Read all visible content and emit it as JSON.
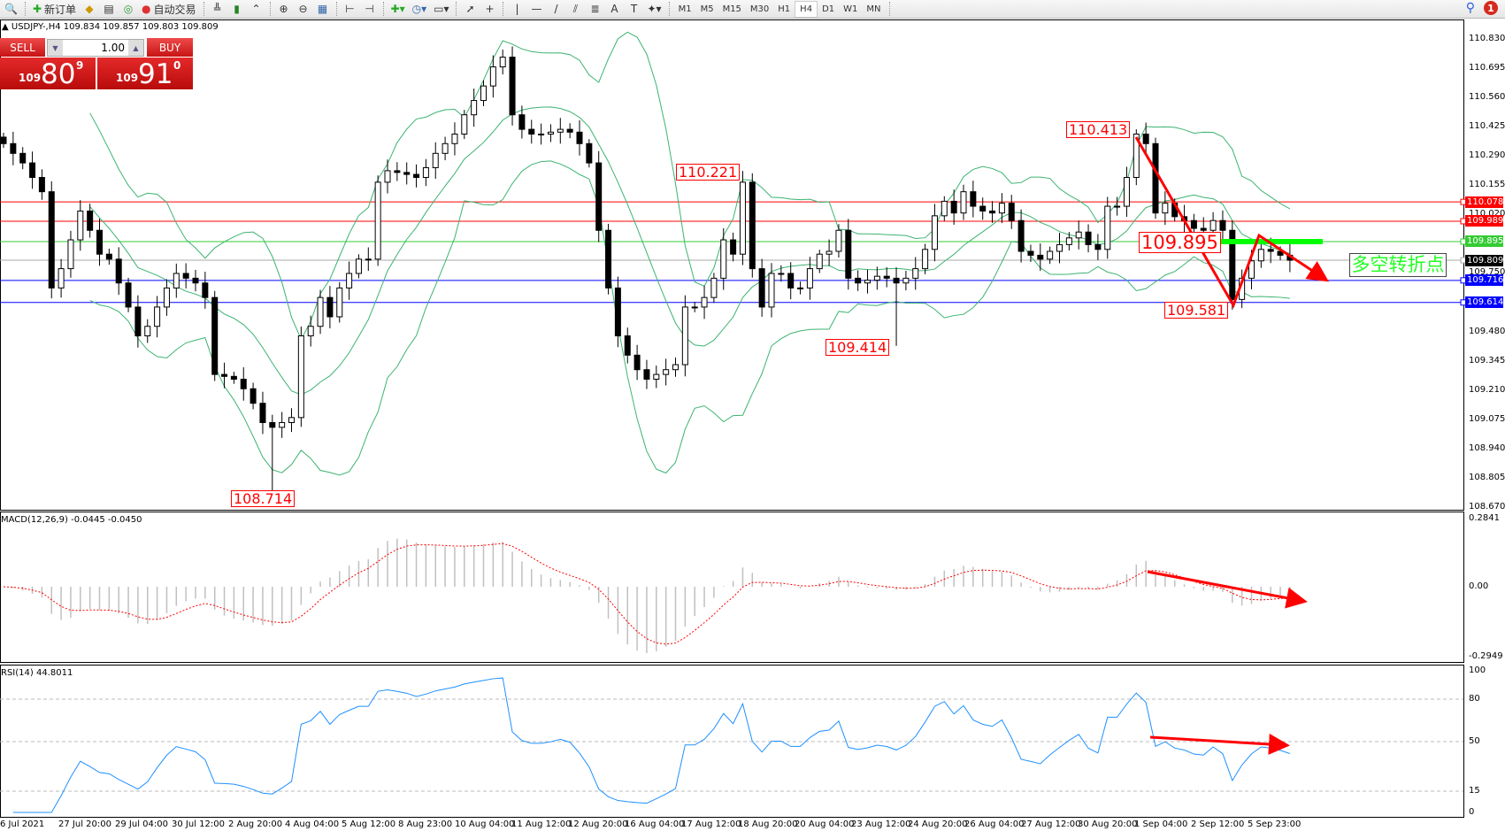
{
  "toolbar": {
    "new_order": "新订单",
    "auto_trading": "自动交易",
    "timeframes": [
      "M1",
      "M5",
      "M15",
      "M30",
      "H1",
      "H4",
      "D1",
      "W1",
      "MN"
    ],
    "active_timeframe": "H4",
    "notifications": "1"
  },
  "symbol_info": "USDJPY-,H4  109.834 109.857 109.803 109.809",
  "oneclick": {
    "sell": "SELL",
    "buy": "BUY",
    "lots": "1.00",
    "sell_prefix": "109",
    "sell_big": "80",
    "sell_pip": "9",
    "buy_prefix": "109",
    "buy_big": "91",
    "buy_pip": "0",
    "color": "#d41919"
  },
  "price_axis": [
    "110.830",
    "110.695",
    "110.560",
    "110.425",
    "110.290",
    "110.155",
    "110.020",
    "109.750",
    "109.480",
    "109.345",
    "109.210",
    "109.075",
    "108.940",
    "108.805",
    "108.670"
  ],
  "hlines": [
    {
      "price": "110.078",
      "color": "#ff0000"
    },
    {
      "price": "109.989",
      "color": "#ff0000"
    },
    {
      "price": "109.895",
      "color": "#33cc33"
    },
    {
      "price": "109.809",
      "color": "#000000"
    },
    {
      "price": "109.716",
      "color": "#0000ff"
    },
    {
      "price": "109.614",
      "color": "#0000ff"
    }
  ],
  "price_labels": [
    "108.714",
    "110.221",
    "110.413",
    "109.895",
    "109.414",
    "109.581"
  ],
  "note": "多空转折点",
  "macd": {
    "label": "MACD(12,26,9) -0.0445 -0.0450",
    "axis": [
      "0.2841",
      "0.00",
      "-0.2949"
    ]
  },
  "rsi": {
    "label": "RSI(14) 44.8011",
    "axis": [
      "100",
      "80",
      "50",
      "15",
      "0"
    ]
  },
  "time_axis": [
    "6 Jul 2021",
    "27 Jul 20:00",
    "29 Jul 04:00",
    "30 Jul 12:00",
    "2 Aug 20:00",
    "4 Aug 04:00",
    "5 Aug 12:00",
    "8 Aug 23:00",
    "10 Aug 04:00",
    "11 Aug 12:00",
    "12 Aug 20:00",
    "16 Aug 04:00",
    "17 Aug 12:00",
    "18 Aug 20:00",
    "20 Aug 04:00",
    "23 Aug 12:00",
    "24 Aug 20:00",
    "26 Aug 04:00",
    "27 Aug 12:00",
    "30 Aug 20:00",
    "1 Sep 04:00",
    "2 Sep 12:00",
    "5 Sep 23:00"
  ],
  "chart_data": {
    "type": "candlestick",
    "symbol": "USDJPY-",
    "timeframe": "H4",
    "ylim": [
      108.67,
      110.83
    ],
    "closes": [
      110.347,
      110.302,
      110.258,
      110.191,
      110.125,
      109.681,
      109.77,
      109.903,
      110.036,
      109.947,
      109.837,
      109.814,
      109.704,
      109.593,
      109.46,
      109.504,
      109.593,
      109.681,
      109.748,
      109.726,
      109.704,
      109.637,
      109.282,
      109.273,
      109.26,
      109.216,
      109.149,
      109.06,
      109.038,
      109.06,
      109.083,
      109.46,
      109.504,
      109.637,
      109.548,
      109.681,
      109.748,
      109.814,
      109.814,
      110.169,
      110.222,
      110.214,
      110.205,
      110.191,
      110.236,
      110.302,
      110.347,
      110.391,
      110.48,
      110.546,
      110.613,
      110.701,
      110.746,
      110.48,
      110.413,
      110.391,
      110.391,
      110.4,
      110.413,
      110.4,
      110.347,
      110.258,
      109.947,
      109.681,
      109.46,
      109.371,
      109.304,
      109.26,
      109.282,
      109.304,
      109.327,
      109.593,
      109.593,
      109.637,
      109.726,
      109.903,
      109.837,
      110.169,
      109.77,
      109.593,
      109.748,
      109.748,
      109.681,
      109.681,
      109.77,
      109.837,
      109.85,
      109.947,
      109.726,
      109.704,
      109.717,
      109.735,
      109.726,
      109.704,
      109.726,
      109.77,
      109.859,
      110.014,
      110.081,
      110.027,
      110.125,
      110.058,
      110.036,
      110.027,
      110.072,
      109.992,
      109.85,
      109.832,
      109.814,
      109.85,
      109.881,
      109.912,
      109.939,
      109.881,
      109.859,
      110.058,
      110.058,
      110.191,
      110.391,
      110.347,
      110.027,
      110.072,
      110.01,
      109.992,
      109.956,
      109.947,
      109.992,
      109.947,
      109.628,
      109.726,
      109.806,
      109.859,
      109.85,
      109.832,
      109.809
    ],
    "marked_extremes": [
      {
        "index": 28,
        "price": 108.714
      },
      {
        "index": 77,
        "price": 110.221
      },
      {
        "index": 118,
        "price": 110.413
      },
      {
        "index": 93,
        "price": 109.414
      },
      {
        "index": 128,
        "price": 109.581
      }
    ],
    "indicators": [
      "Bollinger Bands",
      "MACD(12,26,9)",
      "RSI(14)"
    ],
    "colors": {
      "bands": "#3cb371",
      "macd_hist": "#c0c0c0",
      "macd_signal": "#ff0000",
      "rsi": "#1e90ff",
      "arrows": "#ff0000"
    }
  }
}
